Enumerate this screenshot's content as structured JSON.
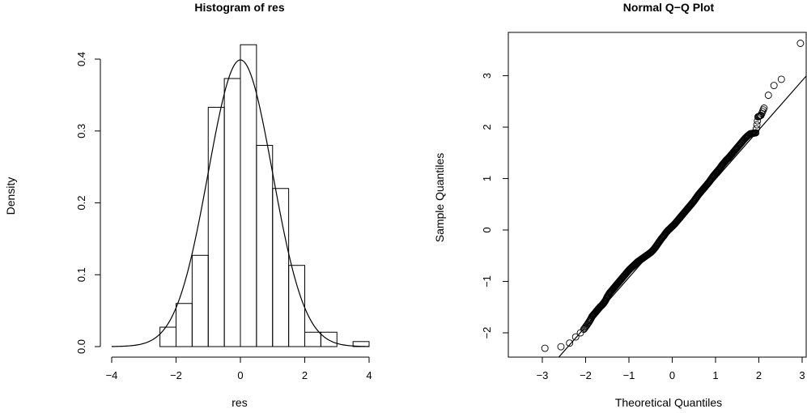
{
  "chart_data": [
    {
      "type": "histogram",
      "title": "Histogram of res",
      "xlabel": "res",
      "ylabel": "Density",
      "xlim": [
        -4,
        4
      ],
      "ylim": [
        0,
        0.42
      ],
      "x_ticks": [
        "-4",
        "-2",
        "0",
        "2",
        "4"
      ],
      "y_ticks": [
        "0.0",
        "0.1",
        "0.2",
        "0.3",
        "0.4"
      ],
      "bins": [
        {
          "x0": -2.5,
          "x1": -2.0,
          "density": 0.027
        },
        {
          "x0": -2.0,
          "x1": -1.5,
          "density": 0.06
        },
        {
          "x0": -1.5,
          "x1": -1.0,
          "density": 0.127
        },
        {
          "x0": -1.0,
          "x1": -0.5,
          "density": 0.333
        },
        {
          "x0": -0.5,
          "x1": 0.0,
          "density": 0.373
        },
        {
          "x0": 0.0,
          "x1": 0.5,
          "density": 0.42
        },
        {
          "x0": 0.5,
          "x1": 1.0,
          "density": 0.28
        },
        {
          "x0": 1.0,
          "x1": 1.5,
          "density": 0.22
        },
        {
          "x0": 1.5,
          "x1": 2.0,
          "density": 0.113
        },
        {
          "x0": 2.0,
          "x1": 2.5,
          "density": 0.02
        },
        {
          "x0": 2.5,
          "x1": 3.0,
          "density": 0.02
        },
        {
          "x0": 3.0,
          "x1": 3.5,
          "density": 0.0
        },
        {
          "x0": 3.5,
          "x1": 4.0,
          "density": 0.007
        }
      ],
      "overlay_curve": {
        "type": "normal-density",
        "mean": 0,
        "sd": 1,
        "x_range": [
          -4,
          4
        ]
      }
    },
    {
      "type": "scatter",
      "title": "Normal Q−Q Plot",
      "xlabel": "Theoretical Quantiles",
      "ylabel": "Sample Quantiles",
      "xlim": [
        -3.1,
        3.1
      ],
      "ylim": [
        -2.5,
        3.75
      ],
      "x_ticks": [
        "-3",
        "-2",
        "-1",
        "0",
        "1",
        "2",
        "3"
      ],
      "y_ticks": [
        "-2",
        "-1",
        "0",
        "1",
        "2",
        "3"
      ],
      "marker": "open-circle",
      "n_points": 300,
      "reference_line": {
        "x1": -2.7,
        "y1": -2.55,
        "x2": 3.1,
        "y2": 3.0
      },
      "points": [
        [
          -2.94,
          -2.3
        ],
        [
          -2.57,
          -2.27
        ],
        [
          -2.37,
          -2.2
        ],
        [
          -2.23,
          -2.08
        ],
        [
          -2.12,
          -2.0
        ],
        [
          -2.04,
          -1.93
        ],
        [
          -1.97,
          -1.85
        ],
        [
          -1.9,
          -1.76
        ],
        [
          -1.85,
          -1.68
        ],
        [
          -1.8,
          -1.63
        ],
        [
          -1.75,
          -1.58
        ],
        [
          -1.7,
          -1.53
        ],
        [
          -1.66,
          -1.49
        ],
        [
          -1.62,
          -1.46
        ],
        [
          -1.58,
          -1.42
        ],
        [
          -1.54,
          -1.37
        ],
        [
          -1.5,
          -1.3
        ],
        [
          -1.45,
          -1.23
        ],
        [
          -1.4,
          -1.18
        ],
        [
          -1.35,
          -1.13
        ],
        [
          -1.3,
          -1.08
        ],
        [
          -1.25,
          -1.03
        ],
        [
          -1.2,
          -0.98
        ],
        [
          -1.15,
          -0.93
        ],
        [
          -1.1,
          -0.88
        ],
        [
          -1.05,
          -0.83
        ],
        [
          -1.0,
          -0.78
        ],
        [
          -0.95,
          -0.74
        ],
        [
          -0.9,
          -0.7
        ],
        [
          -0.85,
          -0.66
        ],
        [
          -0.8,
          -0.62
        ],
        [
          -0.75,
          -0.59
        ],
        [
          -0.7,
          -0.56
        ],
        [
          -0.65,
          -0.53
        ],
        [
          -0.6,
          -0.5
        ],
        [
          -0.55,
          -0.47
        ],
        [
          -0.5,
          -0.44
        ],
        [
          -0.45,
          -0.4
        ],
        [
          -0.4,
          -0.35
        ],
        [
          -0.35,
          -0.29
        ],
        [
          -0.3,
          -0.23
        ],
        [
          -0.25,
          -0.17
        ],
        [
          -0.2,
          -0.12
        ],
        [
          -0.15,
          -0.06
        ],
        [
          -0.1,
          -0.01
        ],
        [
          -0.05,
          0.03
        ],
        [
          0.0,
          0.07
        ],
        [
          0.05,
          0.11
        ],
        [
          0.1,
          0.16
        ],
        [
          0.15,
          0.21
        ],
        [
          0.2,
          0.26
        ],
        [
          0.25,
          0.31
        ],
        [
          0.3,
          0.36
        ],
        [
          0.35,
          0.41
        ],
        [
          0.4,
          0.46
        ],
        [
          0.45,
          0.51
        ],
        [
          0.5,
          0.56
        ],
        [
          0.55,
          0.62
        ],
        [
          0.6,
          0.68
        ],
        [
          0.65,
          0.73
        ],
        [
          0.7,
          0.78
        ],
        [
          0.75,
          0.83
        ],
        [
          0.8,
          0.88
        ],
        [
          0.85,
          0.93
        ],
        [
          0.9,
          0.99
        ],
        [
          0.95,
          1.05
        ],
        [
          1.0,
          1.1
        ],
        [
          1.05,
          1.15
        ],
        [
          1.1,
          1.2
        ],
        [
          1.15,
          1.26
        ],
        [
          1.2,
          1.31
        ],
        [
          1.25,
          1.36
        ],
        [
          1.3,
          1.4
        ],
        [
          1.35,
          1.45
        ],
        [
          1.4,
          1.5
        ],
        [
          1.45,
          1.55
        ],
        [
          1.5,
          1.6
        ],
        [
          1.56,
          1.66
        ],
        [
          1.62,
          1.72
        ],
        [
          1.68,
          1.78
        ],
        [
          1.74,
          1.83
        ],
        [
          1.8,
          1.87
        ],
        [
          1.86,
          1.88
        ],
        [
          1.93,
          1.89
        ],
        [
          1.98,
          2.2
        ],
        [
          2.05,
          2.23
        ],
        [
          2.12,
          2.37
        ],
        [
          2.22,
          2.62
        ],
        [
          2.35,
          2.81
        ],
        [
          2.52,
          2.93
        ],
        [
          2.96,
          3.63
        ]
      ]
    }
  ]
}
